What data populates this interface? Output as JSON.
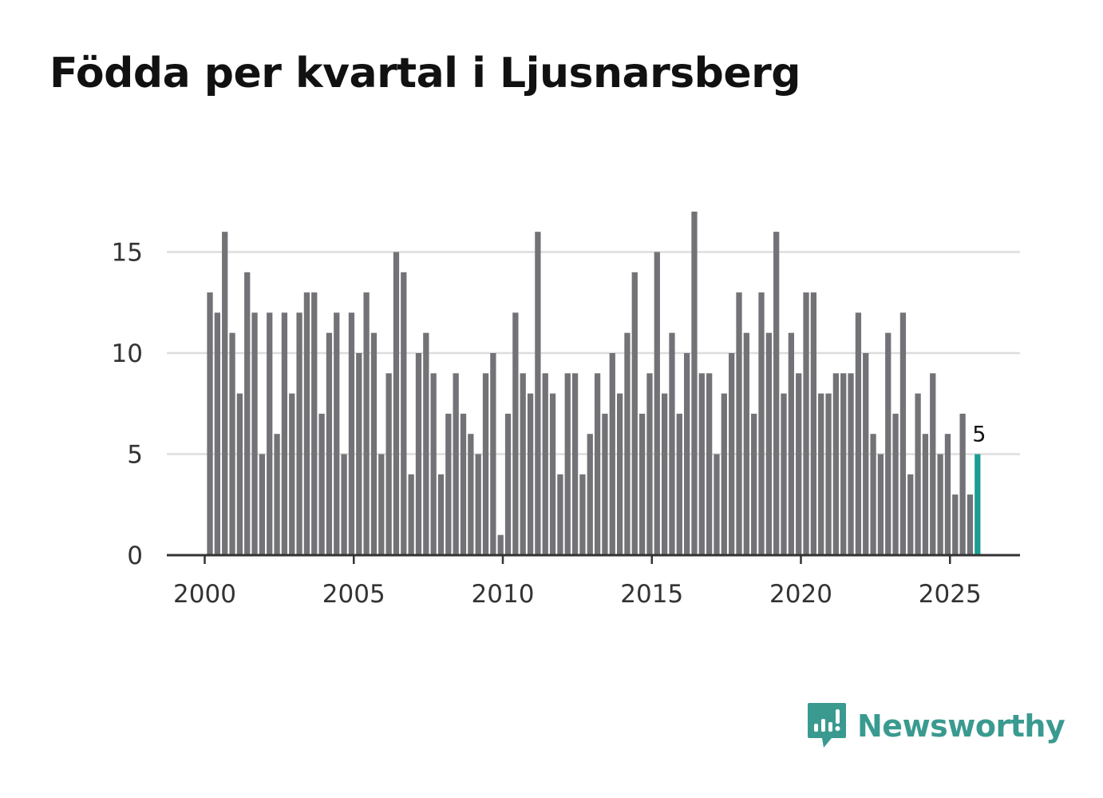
{
  "title": "Födda per kvartal i Ljusnarsberg",
  "brand": {
    "name": "Newsworthy"
  },
  "colors": {
    "bar": "#737276",
    "highlight": "#1a9e94",
    "grid": "#dddddd",
    "axis": "#333333",
    "brand": "#3a9a90"
  },
  "chart_data": {
    "type": "bar",
    "title": "Födda per kvartal i Ljusnarsberg",
    "xlabel": "",
    "ylabel": "",
    "x_ticks": [
      "2000",
      "2005",
      "2010",
      "2015",
      "2020",
      "2025"
    ],
    "y_ticks": [
      "0",
      "5",
      "10",
      "15"
    ],
    "ylim": [
      0,
      17
    ],
    "start_year": 2000,
    "end_year_axis": 2027.3,
    "start_offset_quarters": 0.2,
    "values": [
      13,
      12,
      16,
      11,
      8,
      14,
      12,
      5,
      12,
      6,
      12,
      8,
      12,
      13,
      13,
      7,
      11,
      12,
      5,
      12,
      10,
      13,
      11,
      5,
      9,
      15,
      14,
      4,
      10,
      11,
      9,
      4,
      7,
      9,
      7,
      6,
      5,
      9,
      10,
      1,
      7,
      12,
      9,
      8,
      16,
      9,
      8,
      4,
      9,
      9,
      4,
      6,
      9,
      7,
      10,
      8,
      11,
      14,
      7,
      9,
      15,
      8,
      11,
      7,
      10,
      17,
      9,
      9,
      5,
      8,
      10,
      13,
      11,
      7,
      13,
      11,
      16,
      8,
      11,
      9,
      13,
      13,
      8,
      8,
      9,
      9,
      9,
      12,
      10,
      6,
      5,
      11,
      7,
      12,
      4,
      8,
      6,
      9,
      5,
      6,
      3,
      7,
      3,
      5
    ],
    "highlight_last": true,
    "last_value_label": "5"
  }
}
